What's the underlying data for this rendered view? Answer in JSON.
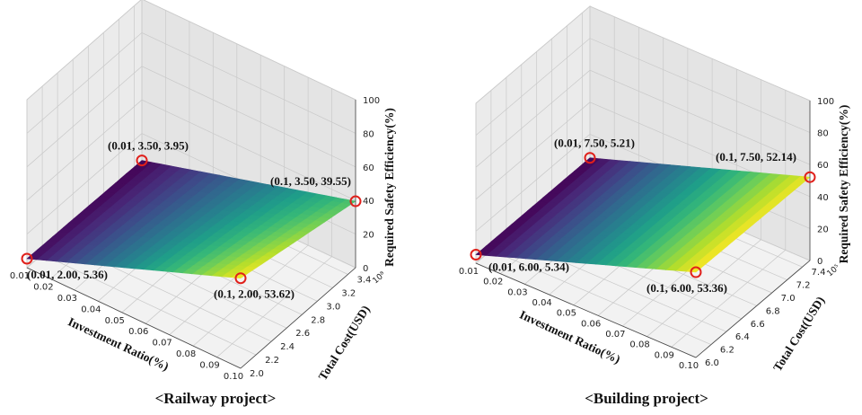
{
  "chart_data": [
    {
      "type": "surface",
      "caption": "<Railway project>",
      "xlabel": "Investment Ratio(%)",
      "ylabel": "Total Cost(USD)",
      "zlabel": "Required Safety Efficiency(%)",
      "y_multiplier": "10⁸",
      "xlim": [
        0.01,
        0.1
      ],
      "ylim": [
        2.0,
        3.5
      ],
      "zlim": [
        0,
        100
      ],
      "x_ticks": [
        "0.01",
        "0.02",
        "0.03",
        "0.04",
        "0.05",
        "0.06",
        "0.07",
        "0.08",
        "0.09",
        "0.10"
      ],
      "y_ticks": [
        "2.0",
        "2.2",
        "2.4",
        "2.6",
        "2.8",
        "3.0",
        "3.2",
        "3.4"
      ],
      "z_ticks": [
        "0",
        "20",
        "40",
        "60",
        "80",
        "100"
      ],
      "colormap": "viridis",
      "corner_points": [
        {
          "x": 0.01,
          "y": 2.0,
          "z": 5.36,
          "label": "(0.01, 2.00, 5.36)"
        },
        {
          "x": 0.1,
          "y": 2.0,
          "z": 53.62,
          "label": "(0.1, 2.00, 53.62)"
        },
        {
          "x": 0.01,
          "y": 3.5,
          "z": 3.95,
          "label": "(0.01, 3.50, 3.95)"
        },
        {
          "x": 0.1,
          "y": 3.5,
          "z": 39.55,
          "label": "(0.1, 3.50, 39.55)"
        }
      ]
    },
    {
      "type": "surface",
      "caption": "<Building project>",
      "xlabel": "Investment Ratio(%)",
      "ylabel": "Total Cost(USD)",
      "zlabel": "Required Safety Efficiency(%)",
      "y_multiplier": "10⁵",
      "xlim": [
        0.01,
        0.1
      ],
      "ylim": [
        6.0,
        7.5
      ],
      "zlim": [
        0,
        100
      ],
      "x_ticks": [
        "0.01",
        "0.02",
        "0.03",
        "0.04",
        "0.05",
        "0.06",
        "0.07",
        "0.08",
        "0.09",
        "0.10"
      ],
      "y_ticks": [
        "6.0",
        "6.2",
        "6.4",
        "6.6",
        "6.8",
        "7.0",
        "7.2",
        "7.4"
      ],
      "z_ticks": [
        "0",
        "20",
        "40",
        "60",
        "80",
        "100"
      ],
      "colormap": "viridis",
      "corner_points": [
        {
          "x": 0.01,
          "y": 6.0,
          "z": 5.34,
          "label": "(0.01, 6.00, 5.34)"
        },
        {
          "x": 0.1,
          "y": 6.0,
          "z": 53.36,
          "label": "(0.1, 6.00, 53.36)"
        },
        {
          "x": 0.01,
          "y": 7.5,
          "z": 5.21,
          "label": "(0.01, 7.50, 5.21)"
        },
        {
          "x": 0.1,
          "y": 7.5,
          "z": 52.14,
          "label": "(0.1, 7.50, 52.14)"
        }
      ]
    }
  ]
}
